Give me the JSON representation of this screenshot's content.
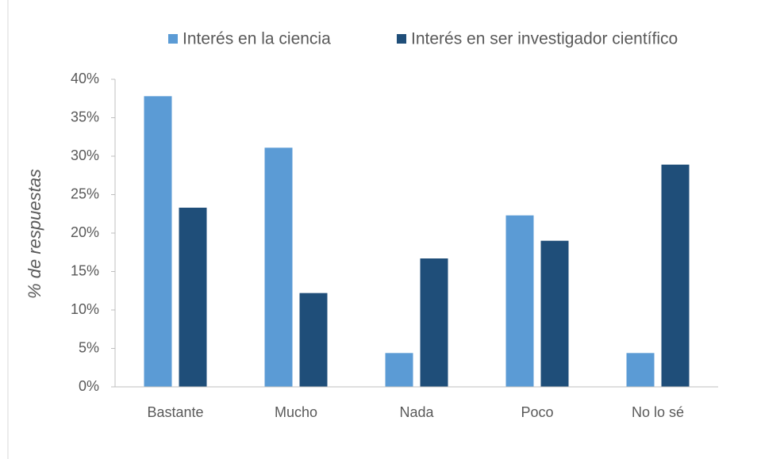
{
  "chart_data": {
    "type": "bar",
    "y_label": "% de respuestas",
    "categories": [
      "Bastante",
      "Mucho",
      "Nada",
      "Poco",
      "No lo sé"
    ],
    "series": [
      {
        "name": "Interés en la ciencia",
        "color": "#5b9bd5",
        "values": [
          37.8,
          31.1,
          4.4,
          22.3,
          4.4
        ]
      },
      {
        "name": "Interés en ser investigador científico",
        "color": "#1f4e79",
        "values": [
          23.3,
          12.2,
          16.7,
          19.0,
          28.9
        ]
      }
    ],
    "ylim": [
      0,
      40
    ],
    "yticks": [
      {
        "value": 0,
        "label": "0%"
      },
      {
        "value": 5,
        "label": "5%"
      },
      {
        "value": 10,
        "label": "10%"
      },
      {
        "value": 15,
        "label": "15%"
      },
      {
        "value": 20,
        "label": "20%"
      },
      {
        "value": 25,
        "label": "25%"
      },
      {
        "value": 30,
        "label": "30%"
      },
      {
        "value": 35,
        "label": "35%"
      },
      {
        "value": 40,
        "label": "40%"
      }
    ],
    "grid": false
  }
}
